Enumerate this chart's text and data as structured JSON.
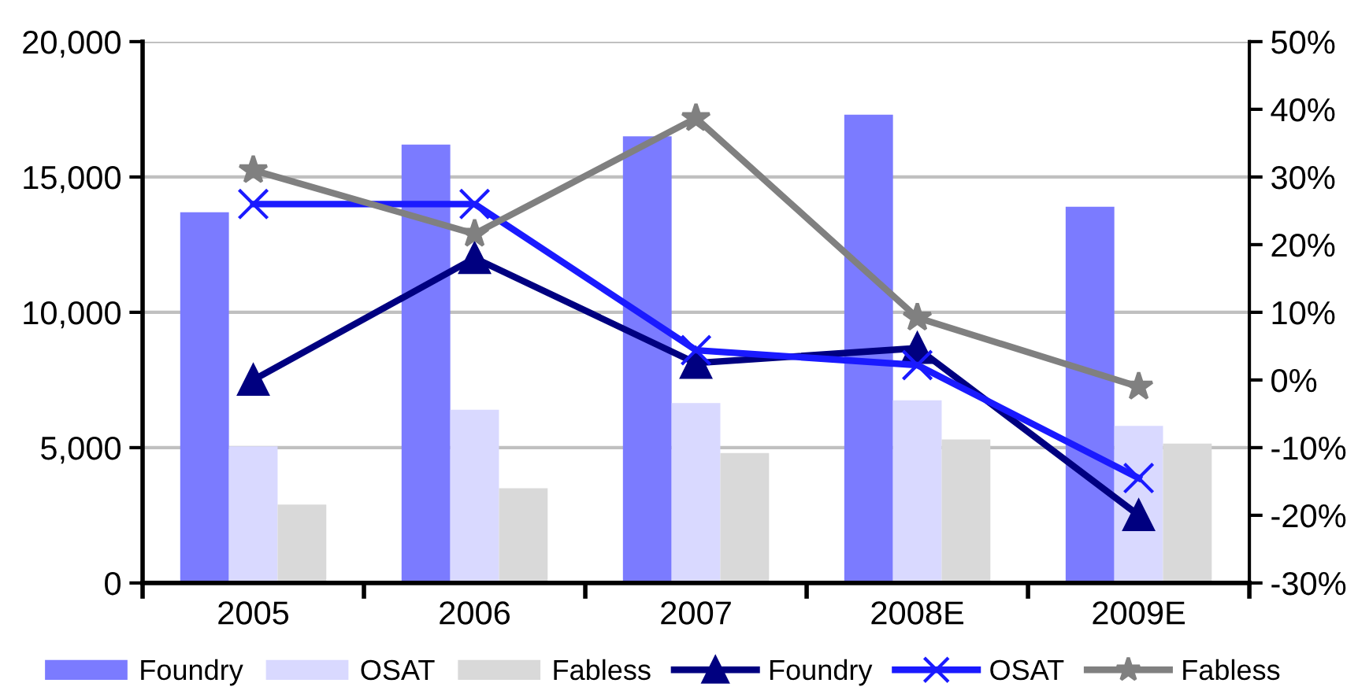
{
  "chart_data": {
    "type": "bar",
    "categories": [
      "2005",
      "2006",
      "2007",
      "2008E",
      "2009E"
    ],
    "series": [
      {
        "name": "Foundry",
        "color": "#7b7bff",
        "values": [
          13700,
          16200,
          16500,
          17300,
          13900
        ]
      },
      {
        "name": "OSAT",
        "color": "#d9d9ff",
        "values": [
          5050,
          6400,
          6650,
          6750,
          5800
        ]
      },
      {
        "name": "Fabless",
        "color": "#d9d9d9",
        "values": [
          2900,
          3500,
          4800,
          5300,
          5150
        ]
      },
      {
        "name": "Foundry",
        "type": "line",
        "axis": "y2",
        "marker": "triangle",
        "color": "#000080",
        "values": [
          0,
          18,
          2.5,
          4.7,
          -20
        ]
      },
      {
        "name": "OSAT",
        "type": "line",
        "axis": "y2",
        "marker": "cross",
        "color": "#1a1aff",
        "values": [
          26,
          26,
          4.4,
          2.2,
          -14.5
        ]
      },
      {
        "name": "Fabless",
        "type": "line",
        "axis": "y2",
        "marker": "star",
        "color": "#808080",
        "values": [
          31,
          21.6,
          38.7,
          9.2,
          -1
        ]
      }
    ],
    "ylim": [
      0,
      20000
    ],
    "yticks": [
      0,
      {
        "value": 5000,
        "label": "5,000"
      },
      {
        "value": 10000,
        "label": "10,000"
      },
      {
        "value": 15000,
        "label": "15,000"
      },
      {
        "value": 20000,
        "label": "20,000"
      }
    ],
    "y2lim": [
      -30,
      50
    ],
    "y2ticks": [
      {
        "value": -30,
        "label": "-30%"
      },
      {
        "value": -20,
        "label": "-20%"
      },
      {
        "value": -10,
        "label": "-10%"
      },
      {
        "value": 0,
        "label": "0%"
      },
      {
        "value": 10,
        "label": "10%"
      },
      {
        "value": 20,
        "label": "20%"
      },
      {
        "value": 30,
        "label": "30%"
      },
      {
        "value": 40,
        "label": "40%"
      },
      {
        "value": 50,
        "label": "50%"
      }
    ],
    "grid": "y",
    "legend": "bottom"
  }
}
